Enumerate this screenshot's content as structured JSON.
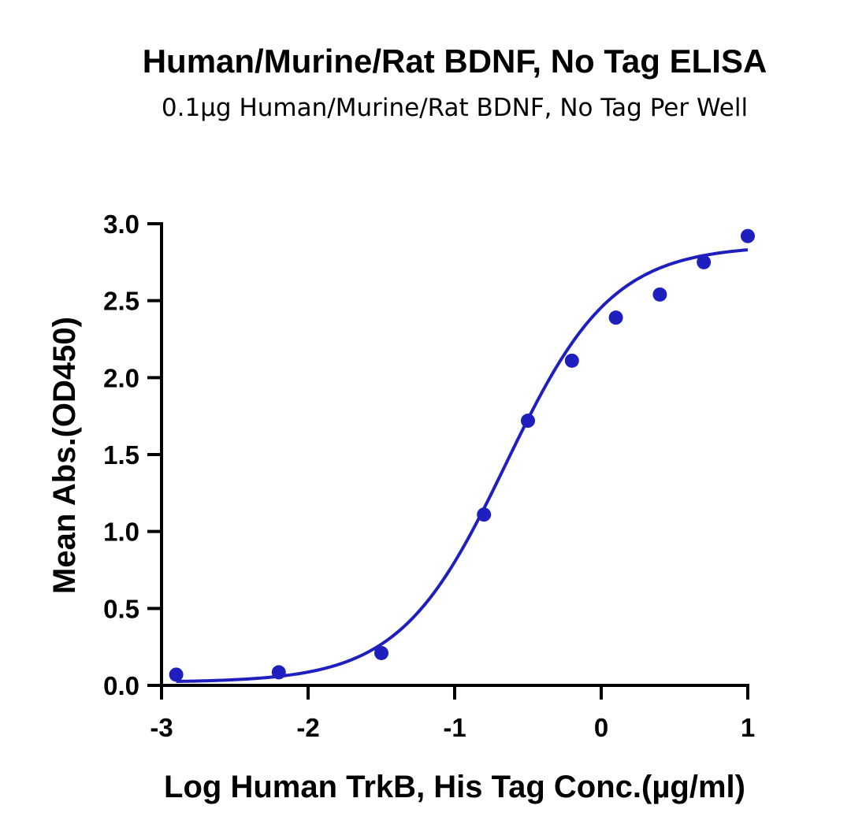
{
  "chart_data": {
    "type": "scatter",
    "title": "Human/Murine/Rat BDNF, No Tag ELISA",
    "subtitle": "0.1µg Human/Murine/Rat BDNF, No Tag Per Well",
    "xlabel": "Log Human TrkB, His Tag Conc.(µg/ml)",
    "ylabel": "Mean Abs.(OD450)",
    "xlim": [
      -3,
      1
    ],
    "ylim": [
      0,
      3.0
    ],
    "x_ticks": [
      -3,
      -2,
      -1,
      0,
      1
    ],
    "x_tick_labels": [
      "-3",
      "-2",
      "-1",
      "0",
      "1"
    ],
    "y_ticks": [
      0,
      0.5,
      1.0,
      1.5,
      2.0,
      2.5,
      3.0
    ],
    "y_tick_labels": [
      "0.0",
      "0.5",
      "1.0",
      "1.5",
      "2.0",
      "2.5",
      "3.0"
    ],
    "grid": false,
    "color": "#1f1fbf",
    "points": [
      {
        "x": -2.9,
        "y": 0.07
      },
      {
        "x": -2.2,
        "y": 0.085
      },
      {
        "x": -1.5,
        "y": 0.21
      },
      {
        "x": -0.8,
        "y": 1.11
      },
      {
        "x": -0.5,
        "y": 1.72
      },
      {
        "x": -0.2,
        "y": 2.11
      },
      {
        "x": 0.1,
        "y": 2.39
      },
      {
        "x": 0.4,
        "y": 2.54
      },
      {
        "x": 0.7,
        "y": 2.75
      },
      {
        "x": 1.0,
        "y": 2.92
      }
    ],
    "fit": {
      "model": "4PL",
      "bottom": 0.02,
      "top": 2.86,
      "log_ec50": -0.65,
      "hill_slope": 1.2,
      "x_range": [
        -2.9,
        1.0
      ]
    }
  }
}
